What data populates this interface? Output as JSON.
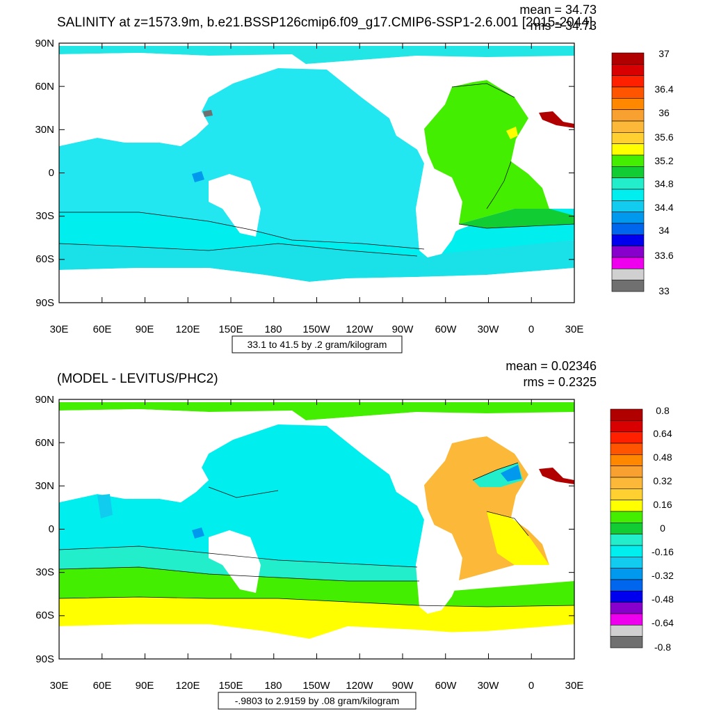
{
  "panels": [
    {
      "title": "SALINITY at z=1573.9m, b.e21.BSSP126cmip6.f09_g17.CMIP6-SSP1-2.6.001 [2015-2044]",
      "mean": "mean = 34.73",
      "rms": "rms = 34.73",
      "yticks": [
        "90N",
        "60N",
        "30N",
        "0",
        "30S",
        "60S",
        "90S"
      ],
      "xticks": [
        "30E",
        "60E",
        "90E",
        "120E",
        "150E",
        "180",
        "150W",
        "120W",
        "90W",
        "60W",
        "30W",
        "0",
        "30E"
      ],
      "contour_info": "33.1 to 41.5 by .2 gram/kilogram",
      "colorbar_labels": [
        "37",
        "36.4",
        "36",
        "35.6",
        "35.2",
        "34.8",
        "34.4",
        "34",
        "33.6",
        "33"
      ],
      "colorbar_colors": [
        "#b00000",
        "#d80000",
        "#ff2000",
        "#ff5500",
        "#ff8800",
        "#f8a030",
        "#fcb838",
        "#ffd030",
        "#ffff00",
        "#44ee00",
        "#11cc33",
        "#22eecc",
        "#00eeee",
        "#11ccee",
        "#0099ee",
        "#0066ee",
        "#0000ee",
        "#8800cc",
        "#ee00ee",
        "#d0d0d0",
        "#707070"
      ]
    },
    {
      "title": "(MODEL - LEVITUS/PHC2)",
      "mean": "mean = 0.02346",
      "rms": "rms = 0.2325",
      "yticks": [
        "90N",
        "60N",
        "30N",
        "0",
        "30S",
        "60S",
        "90S"
      ],
      "xticks": [
        "30E",
        "60E",
        "90E",
        "120E",
        "150E",
        "180",
        "150W",
        "120W",
        "90W",
        "60W",
        "30W",
        "0",
        "30E"
      ],
      "contour_info": "-.9803 to 2.9159 by .08 gram/kilogram",
      "colorbar_labels": [
        "0.8",
        "0.64",
        "0.48",
        "0.32",
        "0.16",
        "0",
        "-0.16",
        "-0.32",
        "-0.48",
        "-0.64",
        "-0.8"
      ],
      "colorbar_colors": [
        "#b00000",
        "#d80000",
        "#ff2000",
        "#ff5500",
        "#ff8800",
        "#f8a030",
        "#fcb838",
        "#ffd030",
        "#ffff00",
        "#44ee00",
        "#11cc33",
        "#22eecc",
        "#00eeee",
        "#11ccee",
        "#0099ee",
        "#0066ee",
        "#0000ee",
        "#8800cc",
        "#ee00ee",
        "#d0d0d0",
        "#707070"
      ]
    }
  ]
}
